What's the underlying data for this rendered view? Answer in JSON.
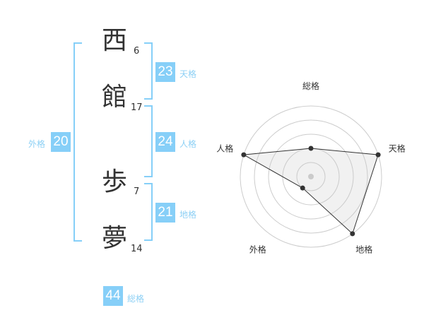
{
  "name": {
    "chars": [
      {
        "char": "西",
        "strokes": "6"
      },
      {
        "char": "館",
        "strokes": "17"
      },
      {
        "char": "歩",
        "strokes": "7"
      },
      {
        "char": "夢",
        "strokes": "14"
      }
    ]
  },
  "kaku": {
    "tenkaku": {
      "value": "23",
      "label": "天格"
    },
    "jinkaku": {
      "value": "24",
      "label": "人格"
    },
    "chikaku": {
      "value": "21",
      "label": "地格"
    },
    "gaikaku": {
      "value": "20",
      "label": "外格"
    },
    "soukaku": {
      "value": "44",
      "label": "総格"
    }
  },
  "accent": "#86cff8",
  "chart_data": {
    "type": "radar",
    "axes": [
      "総格",
      "天格",
      "地格",
      "外格",
      "人格"
    ],
    "values": [
      2,
      5,
      5,
      1,
      5
    ],
    "range": [
      0,
      5
    ],
    "rings": 5
  }
}
